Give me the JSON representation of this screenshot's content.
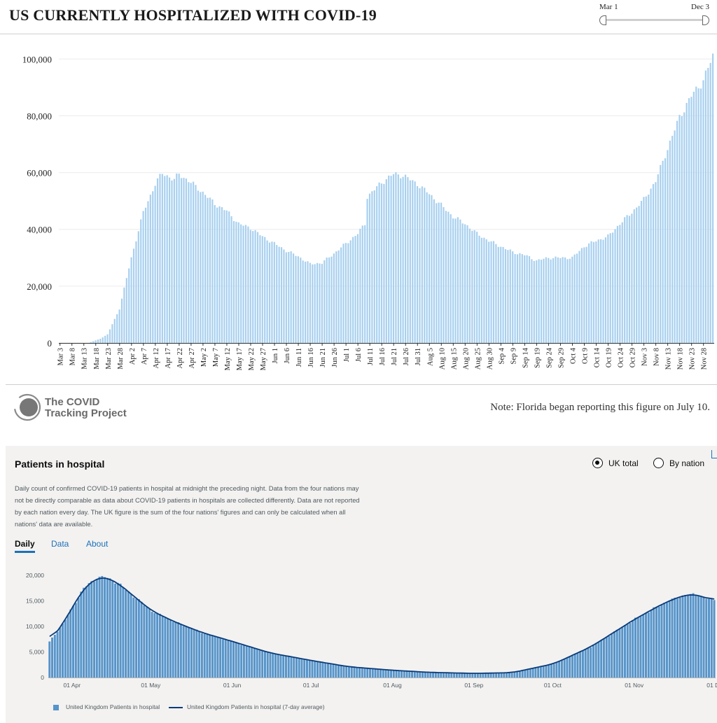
{
  "us": {
    "title": "US CURRENTLY HOSPITALIZED WITH COVID-19",
    "range_slider": {
      "start": "Mar 1",
      "end": "Dec 3"
    },
    "note": "Note: Florida began reporting this figure on July 10.",
    "logo": {
      "line1": "The COVID",
      "line2": "Tracking Project"
    },
    "bar_color": "#a8d0ef"
  },
  "uk": {
    "title": "Patients in hospital",
    "options": {
      "uk_total": "UK total",
      "by_nation": "By nation",
      "selected": "uk_total"
    },
    "description": "Daily count of confirmed COVID-19 patients in hospital at midnight the preceding night. Data from the four nations may not be directly comparable as data about COVID-19 patients in hospitals are collected differently. Data are not reported by each nation every day. The UK figure is the sum of the four nations' figures and can only be calculated when all nations' data are available.",
    "tabs": [
      "Daily",
      "Data",
      "About"
    ],
    "legend": {
      "bars": "United Kingdom Patients in hospital",
      "line": "United Kingdom Patients in hospital (7-day average)"
    },
    "bar_color": "#5694ca",
    "line_color": "#0b3b78"
  },
  "chart_data": [
    {
      "type": "bar",
      "title": "US CURRENTLY HOSPITALIZED WITH COVID-19",
      "x_start": "2020-03-03",
      "x_end": "2020-12-02",
      "x_tick_labels": [
        "Mar 3",
        "Mar 8",
        "Mar 13",
        "Mar 18",
        "Mar 23",
        "Mar 28",
        "Apr 2",
        "Apr 7",
        "Apr 12",
        "Apr 17",
        "Apr 22",
        "Apr 27",
        "May 2",
        "May 7",
        "May 12",
        "May 17",
        "May 22",
        "May 27",
        "Jun 1",
        "Jun 6",
        "Jun 11",
        "Jun 16",
        "Jun 21",
        "Jun 26",
        "Jul 1",
        "Jul 6",
        "Jul 11",
        "Jul 16",
        "Jul 21",
        "Jul 26",
        "Jul 31",
        "Aug 5",
        "Aug 10",
        "Aug 15",
        "Aug 20",
        "Aug 25",
        "Aug 30",
        "Sep 4",
        "Sep 9",
        "Sep 14",
        "Sep 19",
        "Sep 24",
        "Sep 29",
        "Oct 4",
        "Oct 9",
        "Oct 14",
        "Oct 19",
        "Oct 24",
        "Oct 29",
        "Nov 3",
        "Nov 8",
        "Nov 13",
        "Nov 18",
        "Nov 23",
        "Nov 28"
      ],
      "y_ticks": [
        "0",
        "20,000",
        "40,000",
        "60,000",
        "80,000",
        "100,000"
      ],
      "ylim": [
        0,
        105000
      ],
      "grid": true,
      "key_points": [
        {
          "date": "2020-03-03",
          "value": 0
        },
        {
          "date": "2020-03-15",
          "value": 0
        },
        {
          "date": "2020-03-20",
          "value": 1500
        },
        {
          "date": "2020-03-23",
          "value": 3000
        },
        {
          "date": "2020-03-28",
          "value": 12000
        },
        {
          "date": "2020-04-02",
          "value": 30000
        },
        {
          "date": "2020-04-07",
          "value": 46000
        },
        {
          "date": "2020-04-12",
          "value": 56000
        },
        {
          "date": "2020-04-15",
          "value": 59800
        },
        {
          "date": "2020-04-20",
          "value": 57500
        },
        {
          "date": "2020-04-22",
          "value": 59500
        },
        {
          "date": "2020-04-27",
          "value": 56500
        },
        {
          "date": "2020-05-02",
          "value": 53000
        },
        {
          "date": "2020-05-07",
          "value": 49000
        },
        {
          "date": "2020-05-12",
          "value": 46500
        },
        {
          "date": "2020-05-17",
          "value": 42000
        },
        {
          "date": "2020-05-22",
          "value": 40500
        },
        {
          "date": "2020-05-27",
          "value": 37500
        },
        {
          "date": "2020-06-01",
          "value": 35000
        },
        {
          "date": "2020-06-06",
          "value": 32500
        },
        {
          "date": "2020-06-11",
          "value": 30500
        },
        {
          "date": "2020-06-16",
          "value": 27800
        },
        {
          "date": "2020-06-21",
          "value": 28200
        },
        {
          "date": "2020-06-26",
          "value": 31500
        },
        {
          "date": "2020-07-01",
          "value": 35000
        },
        {
          "date": "2020-07-06",
          "value": 38500
        },
        {
          "date": "2020-07-09",
          "value": 42000
        },
        {
          "date": "2020-07-10",
          "value": 51500
        },
        {
          "date": "2020-07-16",
          "value": 56500
        },
        {
          "date": "2020-07-21",
          "value": 59500
        },
        {
          "date": "2020-07-25",
          "value": 59000
        },
        {
          "date": "2020-07-31",
          "value": 56000
        },
        {
          "date": "2020-08-05",
          "value": 52500
        },
        {
          "date": "2020-08-10",
          "value": 48500
        },
        {
          "date": "2020-08-15",
          "value": 44500
        },
        {
          "date": "2020-08-20",
          "value": 42000
        },
        {
          "date": "2020-08-25",
          "value": 38500
        },
        {
          "date": "2020-08-30",
          "value": 36000
        },
        {
          "date": "2020-09-04",
          "value": 34000
        },
        {
          "date": "2020-09-09",
          "value": 32000
        },
        {
          "date": "2020-09-14",
          "value": 31000
        },
        {
          "date": "2020-09-19",
          "value": 29000
        },
        {
          "date": "2020-09-24",
          "value": 30000
        },
        {
          "date": "2020-09-29",
          "value": 30000
        },
        {
          "date": "2020-10-04",
          "value": 30000
        },
        {
          "date": "2020-10-09",
          "value": 34000
        },
        {
          "date": "2020-10-14",
          "value": 36000
        },
        {
          "date": "2020-10-19",
          "value": 37500
        },
        {
          "date": "2020-10-24",
          "value": 42000
        },
        {
          "date": "2020-10-29",
          "value": 46000
        },
        {
          "date": "2020-11-03",
          "value": 50500
        },
        {
          "date": "2020-11-08",
          "value": 57000
        },
        {
          "date": "2020-11-13",
          "value": 68500
        },
        {
          "date": "2020-11-18",
          "value": 79500
        },
        {
          "date": "2020-11-23",
          "value": 87000
        },
        {
          "date": "2020-11-28",
          "value": 92500
        },
        {
          "date": "2020-12-02",
          "value": 101000
        }
      ]
    },
    {
      "type": "bar",
      "title": "Patients in hospital",
      "x_start": "2020-03-23",
      "x_end": "2020-12-01",
      "x_tick_labels": [
        {
          "date": "2020-04-01",
          "label": "01 Apr"
        },
        {
          "date": "2020-05-01",
          "label": "01 May"
        },
        {
          "date": "2020-06-01",
          "label": "01 Jun"
        },
        {
          "date": "2020-07-01",
          "label": "01 Jul"
        },
        {
          "date": "2020-08-01",
          "label": "01 Aug"
        },
        {
          "date": "2020-09-01",
          "label": "01 Sep"
        },
        {
          "date": "2020-10-01",
          "label": "01 Oct"
        },
        {
          "date": "2020-11-01",
          "label": "01 Nov"
        },
        {
          "date": "2020-12-01",
          "label": "01 D"
        }
      ],
      "y_ticks": [
        "0",
        "5,000",
        "10,000",
        "15,000",
        "20,000"
      ],
      "ylim": [
        0,
        20000
      ],
      "series": [
        {
          "name": "United Kingdom Patients in hospital",
          "kind": "bar"
        },
        {
          "name": "United Kingdom Patients in hospital (7-day average)",
          "kind": "line"
        }
      ],
      "key_points": [
        {
          "date": "2020-03-23",
          "value": 7000
        },
        {
          "date": "2020-03-28",
          "value": 10500
        },
        {
          "date": "2020-04-01",
          "value": 14000
        },
        {
          "date": "2020-04-05",
          "value": 17500
        },
        {
          "date": "2020-04-10",
          "value": 19500
        },
        {
          "date": "2020-04-13",
          "value": 19700
        },
        {
          "date": "2020-04-18",
          "value": 18500
        },
        {
          "date": "2020-04-25",
          "value": 15500
        },
        {
          "date": "2020-05-01",
          "value": 13000
        },
        {
          "date": "2020-05-10",
          "value": 10800
        },
        {
          "date": "2020-05-20",
          "value": 8800
        },
        {
          "date": "2020-06-01",
          "value": 7000
        },
        {
          "date": "2020-06-15",
          "value": 4800
        },
        {
          "date": "2020-07-01",
          "value": 3300
        },
        {
          "date": "2020-07-15",
          "value": 2100
        },
        {
          "date": "2020-08-01",
          "value": 1400
        },
        {
          "date": "2020-08-15",
          "value": 1000
        },
        {
          "date": "2020-09-01",
          "value": 800
        },
        {
          "date": "2020-09-15",
          "value": 950
        },
        {
          "date": "2020-10-01",
          "value": 2700
        },
        {
          "date": "2020-10-15",
          "value": 6000
        },
        {
          "date": "2020-11-01",
          "value": 11500
        },
        {
          "date": "2020-11-12",
          "value": 14600
        },
        {
          "date": "2020-11-20",
          "value": 16200
        },
        {
          "date": "2020-11-25",
          "value": 16200
        },
        {
          "date": "2020-11-28",
          "value": 15500
        },
        {
          "date": "2020-12-01",
          "value": 15100
        }
      ]
    }
  ]
}
